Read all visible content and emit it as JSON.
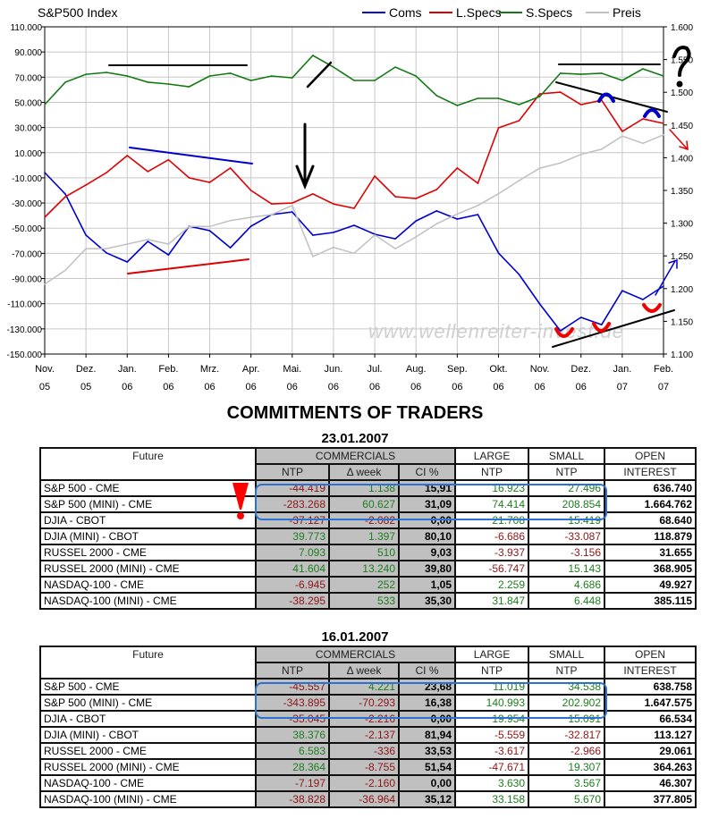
{
  "chart_data": {
    "type": "line",
    "title": "S&P500 Index",
    "watermark": "www.wellenreiter-invest.de",
    "legend_position": "top-right",
    "grid": true,
    "x_tick_labels": [
      [
        "Nov.",
        "05"
      ],
      [
        "Dez.",
        "05"
      ],
      [
        "Jan.",
        "06"
      ],
      [
        "Feb.",
        "06"
      ],
      [
        "Mrz.",
        "06"
      ],
      [
        "Apr.",
        "06"
      ],
      [
        "Mai.",
        "06"
      ],
      [
        "Jun.",
        "06"
      ],
      [
        "Jul.",
        "06"
      ],
      [
        "Aug.",
        "06"
      ],
      [
        "Sep.",
        "06"
      ],
      [
        "Okt.",
        "06"
      ],
      [
        "Nov.",
        "06"
      ],
      [
        "Dez.",
        "06"
      ],
      [
        "Jan.",
        "07"
      ],
      [
        "Feb.",
        "07"
      ]
    ],
    "x": [
      "2005-11-01",
      "2005-11-15",
      "2005-12-01",
      "2005-12-15",
      "2006-01-01",
      "2006-01-15",
      "2006-02-01",
      "2006-02-15",
      "2006-03-01",
      "2006-03-15",
      "2006-04-01",
      "2006-04-15",
      "2006-05-01",
      "2006-05-15",
      "2006-06-01",
      "2006-06-15",
      "2006-07-01",
      "2006-07-15",
      "2006-08-01",
      "2006-08-15",
      "2006-09-01",
      "2006-09-15",
      "2006-10-01",
      "2006-10-15",
      "2006-11-01",
      "2006-11-15",
      "2006-12-01",
      "2006-12-15",
      "2007-01-01",
      "2007-01-15",
      "2007-02-01"
    ],
    "y_left": {
      "min": -150000,
      "max": 110000,
      "step": 20000,
      "tick_labels": [
        "110.000",
        "90.000",
        "70.000",
        "50.000",
        "30.000",
        "10.000",
        "-10.000",
        "-30.000",
        "-50.000",
        "-70.000",
        "-90.000",
        "-110.000",
        "-130.000",
        "-150.000"
      ]
    },
    "y_right": {
      "min": 1100,
      "max": 1600,
      "step": 50,
      "tick_labels": [
        "1.600",
        "1.550",
        "1.500",
        "1.450",
        "1.400",
        "1.350",
        "1.300",
        "1.250",
        "1.200",
        "1.150",
        "1.100"
      ]
    },
    "series": [
      {
        "name": "Coms",
        "axis": "left",
        "color": "#0000cc",
        "values": [
          -5800,
          -22900,
          -55500,
          -69700,
          -76800,
          -60500,
          -71200,
          -48400,
          -52000,
          -65500,
          -48400,
          -39200,
          -37100,
          -55500,
          -53400,
          -47700,
          -54800,
          -58400,
          -44200,
          -36300,
          -42700,
          -39200,
          -69700,
          -86800,
          -110200,
          -131500,
          -120900,
          -126600,
          -99600,
          -106700,
          -96000
        ]
      },
      {
        "name": "L.Specs",
        "axis": "left",
        "color": "#dd0000",
        "values": [
          -41300,
          -25000,
          -15700,
          -5800,
          7700,
          -5000,
          4400,
          -10000,
          -13600,
          -2200,
          -20000,
          -30700,
          -30000,
          -22800,
          -30700,
          -34200,
          -8600,
          -25000,
          -26400,
          -19300,
          -2200,
          -14300,
          29700,
          35400,
          56700,
          58100,
          48200,
          51700,
          26900,
          36800,
          33300
        ]
      },
      {
        "name": "S.Specs",
        "axis": "left",
        "color": "#137a13",
        "values": [
          48200,
          66000,
          72300,
          73800,
          70900,
          66000,
          64500,
          62400,
          70900,
          73100,
          67400,
          70900,
          69500,
          87300,
          78000,
          67400,
          67400,
          78000,
          70900,
          55300,
          47500,
          53200,
          53200,
          48200,
          54600,
          73100,
          72300,
          73100,
          67400,
          76600,
          70900
        ]
      },
      {
        "name": "Preis",
        "axis": "right",
        "color": "#c0c0c0",
        "values": [
          1207,
          1228,
          1261,
          1261,
          1268,
          1275,
          1268,
          1295,
          1295,
          1304,
          1309,
          1313,
          1327,
          1249,
          1263,
          1254,
          1282,
          1261,
          1279,
          1299,
          1314,
          1327,
          1345,
          1365,
          1384,
          1392,
          1405,
          1413,
          1433,
          1422,
          1435
        ]
      }
    ]
  },
  "cot": {
    "title": "COMMITMENTS OF TRADERS",
    "headers": {
      "future": "Future",
      "commercials": "COMMERCIALS",
      "ntp": "NTP",
      "dweek": "Δ week",
      "ci": "CI %",
      "large1": "LARGE",
      "large2": "NTP",
      "small1": "SMALL",
      "small2": "NTP",
      "open1": "OPEN",
      "open2": "INTEREST"
    },
    "tables": [
      {
        "date": "23.01.2007",
        "rows": [
          [
            "S&P 500 - CME",
            "-44.419",
            "1.138",
            "15,91",
            "16.923",
            "27.496",
            "636.740"
          ],
          [
            "S&P 500 (MINI) - CME",
            "-283.268",
            "60.627",
            "31,09",
            "74.414",
            "208.854",
            "1.664.762"
          ],
          [
            "DJIA - CBOT",
            "-37.127",
            "-2.082",
            "0,00",
            "21.708",
            "15.419",
            "68.640"
          ],
          [
            "DJIA (MINI) - CBOT",
            "39.773",
            "1.397",
            "80,10",
            "-6.686",
            "-33.087",
            "118.879"
          ],
          [
            "RUSSEL 2000 - CME",
            "7.093",
            "510",
            "9,03",
            "-3.937",
            "-3.156",
            "31.655"
          ],
          [
            "RUSSEL 2000 (MINI) - CME",
            "41.604",
            "13.240",
            "39,80",
            "-56.747",
            "15.143",
            "368.905"
          ],
          [
            "NASDAQ-100 - CME",
            "-6.945",
            "252",
            "1,05",
            "2.259",
            "4.686",
            "49.927"
          ],
          [
            "NASDAQ-100 (MINI) - CME",
            "-38.295",
            "533",
            "35,30",
            "31.847",
            "6.448",
            "385.115"
          ]
        ]
      },
      {
        "date": "16.01.2007",
        "rows": [
          [
            "S&P 500 - CME",
            "-45.557",
            "4.221",
            "23,68",
            "11.019",
            "34.538",
            "638.758"
          ],
          [
            "S&P 500 (MINI) - CME",
            "-343.895",
            "-70.293",
            "16,38",
            "140.993",
            "202.902",
            "1.647.575"
          ],
          [
            "DJIA - CBOT",
            "-35.045",
            "-2.216",
            "0,00",
            "19.954",
            "15.091",
            "66.534"
          ],
          [
            "DJIA (MINI) - CBOT",
            "38.376",
            "-2.137",
            "81,94",
            "-5.559",
            "-32.817",
            "113.127"
          ],
          [
            "RUSSEL 2000 - CME",
            "6.583",
            "-336",
            "33,53",
            "-3.617",
            "-2.966",
            "29.061"
          ],
          [
            "RUSSEL 2000 (MINI) - CME",
            "28.364",
            "-8.755",
            "51,54",
            "-47.671",
            "19.307",
            "364.263"
          ],
          [
            "NASDAQ-100 - CME",
            "-7.197",
            "-2.160",
            "0,00",
            "3.630",
            "3.567",
            "46.307"
          ],
          [
            "NASDAQ-100 (MINI) - CME",
            "-38.828",
            "-36.964",
            "35,12",
            "33.158",
            "5.670",
            "377.805"
          ]
        ]
      }
    ],
    "colors": {
      "positive": "#1e7d1e",
      "negative": "#8c1616",
      "highlight": "#2a72d4",
      "commercials_fill": "#c0c0c0"
    }
  }
}
